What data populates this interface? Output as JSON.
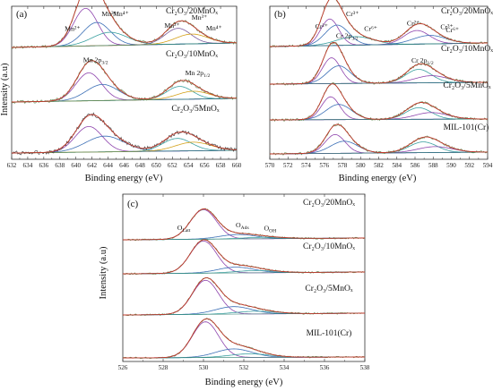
{
  "chart_data": [
    {
      "type": "line",
      "panel_label": "(a)",
      "xlabel": "Binding energy (eV)",
      "ylabel": "Intensity (a.u)",
      "xlim": [
        632,
        660
      ],
      "reversed_x": false,
      "x_ticks": [
        "632",
        "634",
        "636",
        "638",
        "640",
        "642",
        "644",
        "646",
        "648",
        "650",
        "652",
        "654",
        "656",
        "658",
        "660"
      ],
      "series": [
        {
          "name": "Cr₂O₃/20MnOₓ",
          "colors": {
            "raw": "#6b8e5a",
            "envelope": "#c0392b",
            "components": [
              "#8e44ad",
              "#3b6fb6",
              "#3aa0a0",
              "#7a5c9e",
              "#d4a017"
            ]
          }
        },
        {
          "name": "Cr₂O₃/10MnOₓ",
          "colors": {
            "raw": "#6b8e5a",
            "envelope": "#c0392b",
            "components": [
              "#8e44ad",
              "#3b6fb6",
              "#3aa0a0",
              "#d4a017"
            ]
          }
        },
        {
          "name": "Cr₂O₃/5MnOₓ",
          "colors": {
            "raw": "#4a4a4a",
            "envelope": "#c0392b",
            "components": [
              "#8e44ad",
              "#3b6fb6",
              "#3aa0a0",
              "#d4a017"
            ]
          }
        }
      ],
      "annotations": [
        {
          "text": "Mn²⁺",
          "x": 638.6,
          "series": 0
        },
        {
          "text": "Mn³⁺",
          "x": 643.2,
          "series": 0
        },
        {
          "text": "Mn⁴⁺",
          "x": 644.6,
          "series": 0
        },
        {
          "text": "Mn²⁺",
          "x": 651.0,
          "series": 0
        },
        {
          "text": "Mn³⁺",
          "x": 654.4,
          "series": 0
        },
        {
          "text": "Mn⁴⁺",
          "x": 656.2,
          "series": 0
        },
        {
          "text": "Mn 2p3/2",
          "x": 640.9,
          "series": 1
        },
        {
          "text": "Mn 2p1/2",
          "x": 653.6,
          "series": 1
        }
      ]
    },
    {
      "type": "line",
      "panel_label": "(b)",
      "xlabel": "Binding energy (eV)",
      "ylabel": "",
      "xlim": [
        570,
        594
      ],
      "reversed_x": false,
      "x_ticks": [
        "570",
        "572",
        "574",
        "576",
        "578",
        "580",
        "582",
        "584",
        "586",
        "588",
        "590",
        "592",
        "594"
      ],
      "series": [
        {
          "name": "Cr₂O₃/20MnOₓ",
          "colors": {
            "raw": "#6b8e5a",
            "envelope": "#c0392b",
            "components": [
              "#8e44ad",
              "#3b6fb6",
              "#3aa0a0"
            ]
          }
        },
        {
          "name": "Cr₂O₃/10MnOₓ",
          "colors": {
            "raw": "#6b8e5a",
            "envelope": "#c0392b",
            "components": [
              "#8e44ad",
              "#3b6fb6",
              "#3aa0a0"
            ]
          }
        },
        {
          "name": "Cr₂O₃/5MnOₓ",
          "colors": {
            "raw": "#6b8e5a",
            "envelope": "#c0392b",
            "components": [
              "#8e44ad",
              "#3b6fb6",
              "#3aa0a0"
            ]
          }
        },
        {
          "name": "MIL-101(Cr)",
          "colors": {
            "raw": "#6b8e5a",
            "envelope": "#c0392b",
            "components": [
              "#8e44ad",
              "#3b6fb6",
              "#3aa0a0"
            ]
          }
        }
      ],
      "annotations": [
        {
          "text": "Cr²⁺",
          "x": 575.0,
          "series": 0
        },
        {
          "text": "Cr³⁺",
          "x": 578.4,
          "series": 0
        },
        {
          "text": "Cr⁶⁺",
          "x": 580.4,
          "series": 0
        },
        {
          "text": "Cr²⁺",
          "x": 585.1,
          "series": 0
        },
        {
          "text": "Cr³⁺",
          "x": 588.8,
          "series": 0
        },
        {
          "text": "Cr⁶⁺",
          "x": 589.4,
          "series": 0
        },
        {
          "text": "Cr 2p3/2",
          "x": 577.3,
          "series": 1
        },
        {
          "text": "Cr 2p1/2",
          "x": 585.6,
          "series": 1
        }
      ]
    },
    {
      "type": "line",
      "panel_label": "(c)",
      "xlabel": "Binding energy (eV)",
      "ylabel": "Intensity (a.u)",
      "xlim": [
        526,
        538
      ],
      "reversed_x": false,
      "x_ticks": [
        "526",
        "528",
        "530",
        "532",
        "534",
        "536",
        "538"
      ],
      "series": [
        {
          "name": "Cr₂O₃/20MnOₓ",
          "colors": {
            "raw": "#6b8e5a",
            "envelope": "#c0392b",
            "components": [
              "#8e44ad",
              "#3b6fb6",
              "#3aa0a0"
            ]
          }
        },
        {
          "name": "Cr₂O₃/10MnOₓ",
          "colors": {
            "raw": "#6b8e5a",
            "envelope": "#c0392b",
            "components": [
              "#8e44ad",
              "#3b6fb6",
              "#3aa0a0"
            ]
          }
        },
        {
          "name": "Cr₂O₃/5MnOₓ",
          "colors": {
            "raw": "#6b8e5a",
            "envelope": "#c0392b",
            "components": [
              "#8e44ad",
              "#3b6fb6",
              "#3aa0a0"
            ]
          }
        },
        {
          "name": "MIL-101(Cr)",
          "colors": {
            "raw": "#6b8e5a",
            "envelope": "#c0392b",
            "components": [
              "#8e44ad",
              "#3b6fb6",
              "#3aa0a0"
            ]
          }
        }
      ],
      "annotations": [
        {
          "text": "O_Latt",
          "x": 528.7,
          "series": 0
        },
        {
          "text": "O_Ads",
          "x": 531.6,
          "series": 0
        },
        {
          "text": "O_OH",
          "x": 533.0,
          "series": 0
        }
      ]
    }
  ]
}
